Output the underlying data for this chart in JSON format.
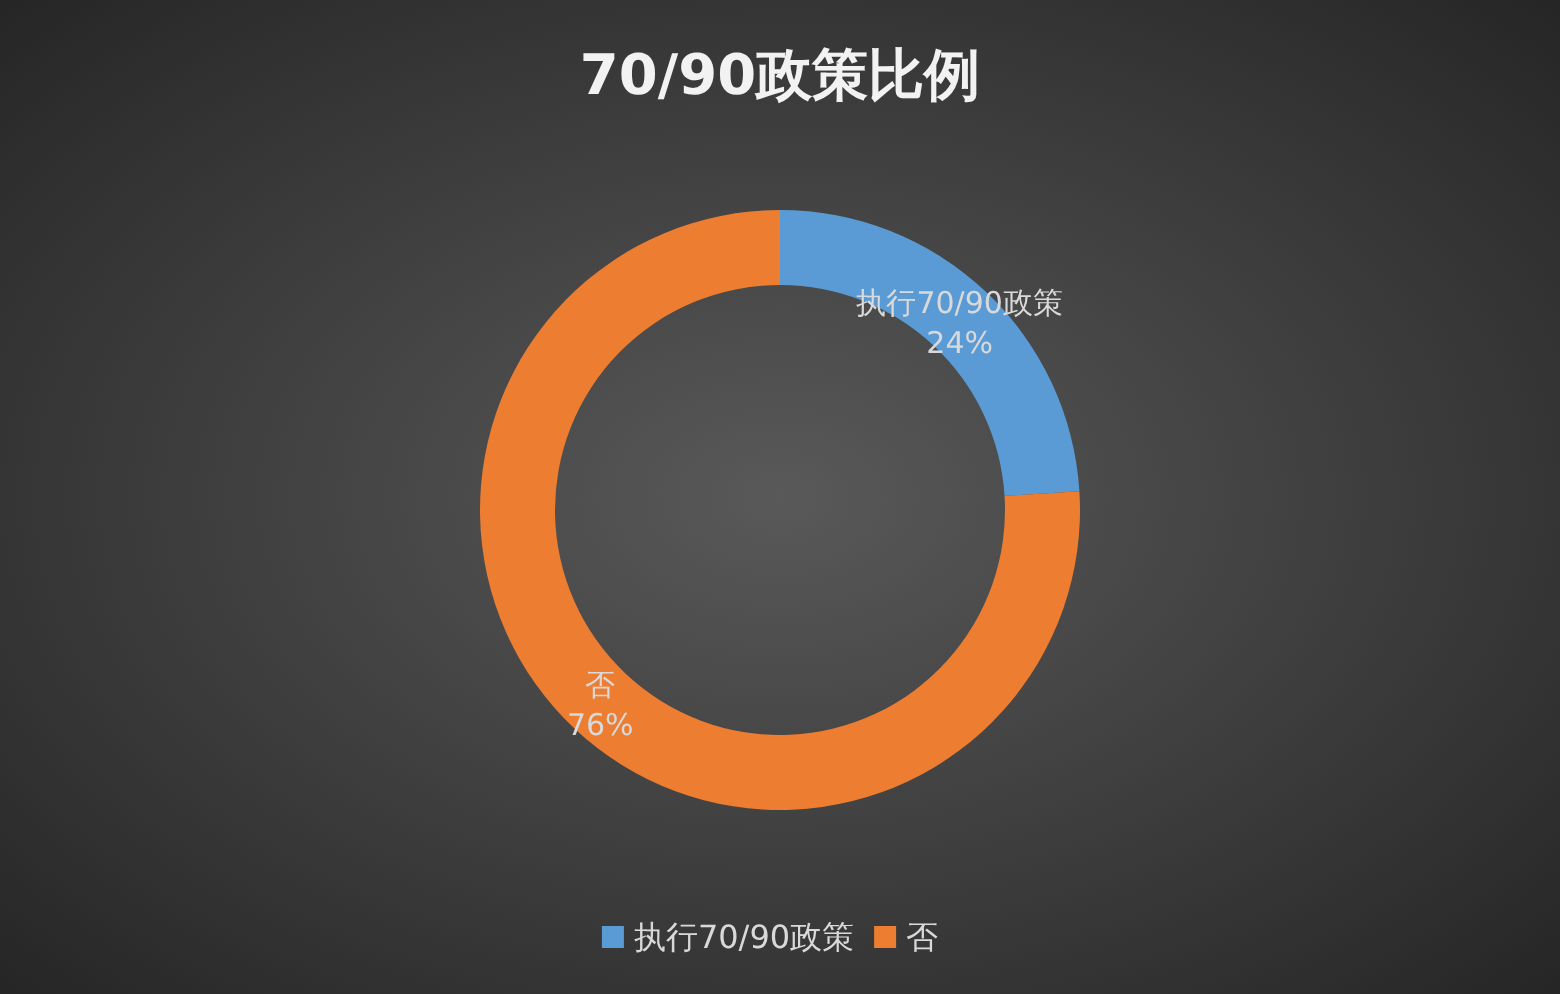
{
  "chart_data": {
    "type": "donut",
    "title": "70/90政策比例",
    "categories": [
      "执行70/90政策",
      "否"
    ],
    "values": [
      24,
      76
    ],
    "colors": [
      "#5b9bd5",
      "#ed7d31"
    ],
    "value_labels": [
      "24%",
      "76%"
    ],
    "legend": "bottom"
  }
}
